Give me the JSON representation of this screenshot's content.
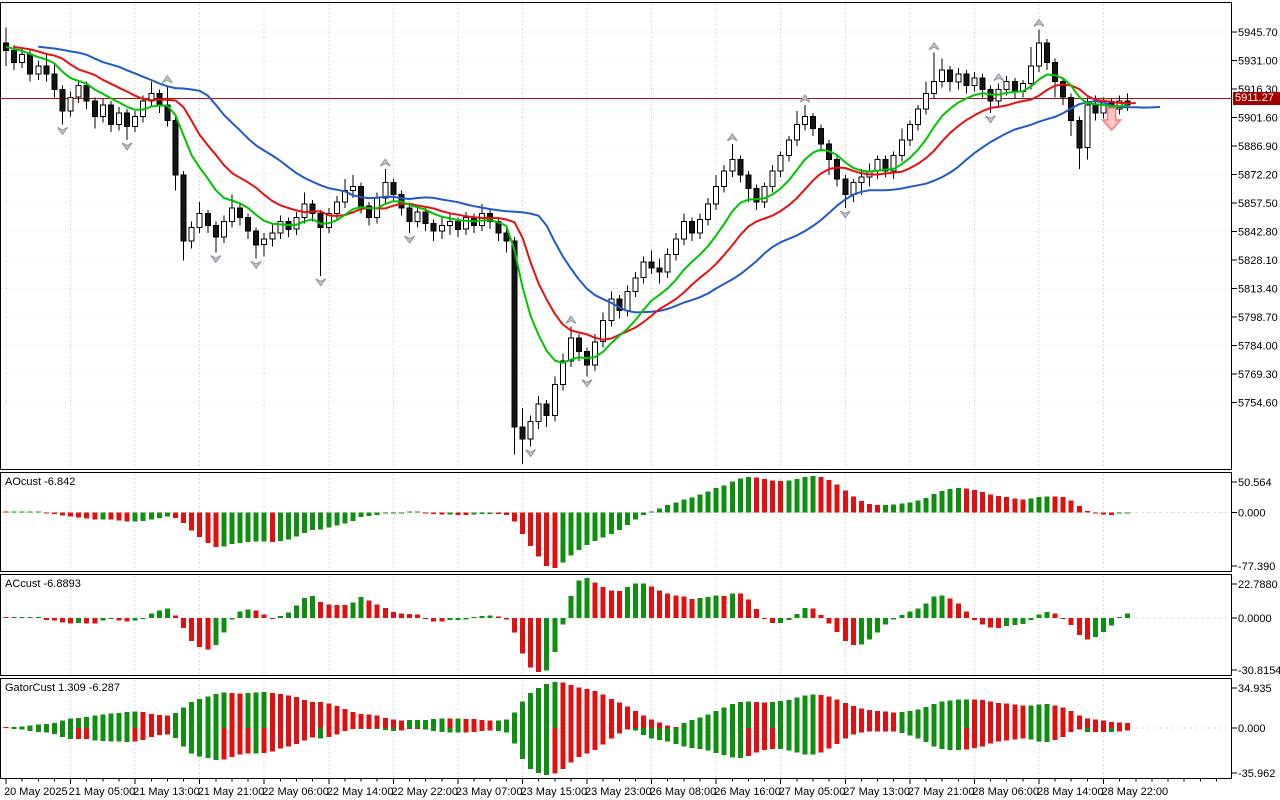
{
  "colors": {
    "background": "#ffffff",
    "border": "#000000",
    "grid": "#dcdcdc",
    "candle_outline": "#000000",
    "bull_fill": "#ffffff",
    "bear_fill": "#141414",
    "jaw_blue": "#1e5ac8",
    "teeth_red": "#e81010",
    "lips_green": "#00c400",
    "price_line": "#aa1111",
    "price_tag_bg": "#a40000",
    "price_tag_text": "#ffffff",
    "hist_up": "#0f8f0f",
    "hist_down": "#e01010",
    "fractal_fill": "#c4c4ce",
    "fractal_edge": "#93939f",
    "signal_fill": "#ffc4c4",
    "signal_edge": "#ff7878",
    "axis_text": "#000000"
  },
  "price_axis": {
    "ticks": [
      "5945.70",
      "5931.00",
      "5916.30",
      "5901.60",
      "5886.90",
      "5872.20",
      "5857.50",
      "5842.80",
      "5828.10",
      "5813.40",
      "5798.70",
      "5784.00",
      "5769.30",
      "5754.60"
    ],
    "current_price": "5911.27"
  },
  "time_axis": {
    "labels": [
      "20 May 2025",
      "21 May 05:00",
      "21 May 13:00",
      "21 May 21:00",
      "22 May 06:00",
      "22 May 14:00",
      "22 May 22:00",
      "23 May 07:00",
      "23 May 15:00",
      "23 May 23:00",
      "26 May 08:00",
      "26 May 16:00",
      "27 May 05:00",
      "27 May 13:00",
      "27 May 21:00",
      "28 May 06:00",
      "28 May 14:00",
      "28 May 22:00"
    ]
  },
  "panes": {
    "ao": {
      "label": "AOcust -6.842",
      "axis_max": "50.564",
      "axis_zero": "0.000",
      "axis_min": "-77.390"
    },
    "ac": {
      "label": "ACcust -6.8893",
      "axis_max": "22.7880",
      "axis_zero": "0.0000",
      "axis_min": "-30.8154"
    },
    "gator": {
      "label": "GatorCust 1.309 -6.287",
      "axis_max": "34.935",
      "axis_zero": "0.000",
      "axis_min": "-35.962"
    }
  },
  "chart_data": {
    "type": "candlestick",
    "title": "",
    "x_tick_labels": [
      "20 May 2025",
      "21 May 05:00",
      "21 May 13:00",
      "21 May 21:00",
      "22 May 06:00",
      "22 May 14:00",
      "22 May 22:00",
      "23 May 07:00",
      "23 May 15:00",
      "23 May 23:00",
      "26 May 08:00",
      "26 May 16:00",
      "27 May 05:00",
      "27 May 13:00",
      "27 May 21:00",
      "28 May 06:00",
      "28 May 14:00",
      "28 May 22:00"
    ],
    "price_range": [
      5722,
      5958
    ],
    "current_price": 5911.27,
    "candles": [
      [
        5940,
        5948,
        5928,
        5936
      ],
      [
        5936,
        5939,
        5926,
        5930
      ],
      [
        5930,
        5937,
        5927,
        5934
      ],
      [
        5934,
        5936,
        5920,
        5924
      ],
      [
        5924,
        5931,
        5921,
        5928
      ],
      [
        5928,
        5934,
        5920,
        5924
      ],
      [
        5924,
        5930,
        5912,
        5916
      ],
      [
        5916,
        5918,
        5898,
        5905
      ],
      [
        5905,
        5915,
        5902,
        5912
      ],
      [
        5912,
        5921,
        5909,
        5918
      ],
      [
        5918,
        5920,
        5906,
        5910
      ],
      [
        5910,
        5912,
        5896,
        5902
      ],
      [
        5902,
        5911,
        5899,
        5908
      ],
      [
        5908,
        5910,
        5894,
        5898
      ],
      [
        5898,
        5907,
        5895,
        5904
      ],
      [
        5904,
        5906,
        5890,
        5897
      ],
      [
        5897,
        5905,
        5894,
        5902
      ],
      [
        5902,
        5913,
        5899,
        5910
      ],
      [
        5910,
        5920,
        5907,
        5914
      ],
      [
        5914,
        5916,
        5904,
        5908
      ],
      [
        5908,
        5918,
        5897,
        5900
      ],
      [
        5900,
        5902,
        5864,
        5872
      ],
      [
        5872,
        5874,
        5828,
        5838
      ],
      [
        5838,
        5848,
        5834,
        5845
      ],
      [
        5845,
        5858,
        5842,
        5852
      ],
      [
        5852,
        5854,
        5842,
        5846
      ],
      [
        5846,
        5848,
        5832,
        5840
      ],
      [
        5840,
        5851,
        5837,
        5848
      ],
      [
        5848,
        5862,
        5845,
        5855
      ],
      [
        5855,
        5857,
        5846,
        5850
      ],
      [
        5850,
        5852,
        5839,
        5843
      ],
      [
        5843,
        5845,
        5829,
        5836
      ],
      [
        5836,
        5842,
        5830,
        5839
      ],
      [
        5839,
        5847,
        5835,
        5842
      ],
      [
        5842,
        5851,
        5839,
        5848
      ],
      [
        5848,
        5850,
        5840,
        5844
      ],
      [
        5844,
        5853,
        5841,
        5850
      ],
      [
        5850,
        5863,
        5847,
        5857
      ],
      [
        5857,
        5859,
        5848,
        5852
      ],
      [
        5852,
        5854,
        5820,
        5845
      ],
      [
        5845,
        5855,
        5842,
        5852
      ],
      [
        5852,
        5861,
        5849,
        5858
      ],
      [
        5858,
        5870,
        5855,
        5864
      ],
      [
        5864,
        5872,
        5860,
        5866
      ],
      [
        5866,
        5868,
        5852,
        5856
      ],
      [
        5856,
        5858,
        5846,
        5850
      ],
      [
        5850,
        5863,
        5847,
        5860
      ],
      [
        5860,
        5875,
        5857,
        5868
      ],
      [
        5868,
        5870,
        5858,
        5862
      ],
      [
        5862,
        5864,
        5851,
        5855
      ],
      [
        5855,
        5857,
        5842,
        5848
      ],
      [
        5848,
        5856,
        5845,
        5853
      ],
      [
        5853,
        5855,
        5843,
        5847
      ],
      [
        5847,
        5849,
        5838,
        5843
      ],
      [
        5843,
        5850,
        5839,
        5846
      ],
      [
        5846,
        5852,
        5841,
        5848
      ],
      [
        5848,
        5850,
        5840,
        5844
      ],
      [
        5844,
        5853,
        5841,
        5850
      ],
      [
        5850,
        5852,
        5842,
        5846
      ],
      [
        5846,
        5857,
        5843,
        5852
      ],
      [
        5852,
        5854,
        5844,
        5848
      ],
      [
        5848,
        5850,
        5838,
        5842
      ],
      [
        5842,
        5844,
        5832,
        5838
      ],
      [
        5838,
        5840,
        5728,
        5742
      ],
      [
        5742,
        5752,
        5723,
        5736
      ],
      [
        5736,
        5748,
        5732,
        5745
      ],
      [
        5745,
        5758,
        5741,
        5754
      ],
      [
        5754,
        5756,
        5742,
        5748
      ],
      [
        5748,
        5768,
        5745,
        5764
      ],
      [
        5764,
        5780,
        5761,
        5776
      ],
      [
        5776,
        5794,
        5773,
        5788
      ],
      [
        5788,
        5790,
        5776,
        5781
      ],
      [
        5781,
        5783,
        5768,
        5774
      ],
      [
        5774,
        5790,
        5771,
        5786
      ],
      [
        5786,
        5801,
        5783,
        5797
      ],
      [
        5797,
        5812,
        5794,
        5808
      ],
      [
        5808,
        5810,
        5798,
        5802
      ],
      [
        5802,
        5815,
        5799,
        5812
      ],
      [
        5812,
        5822,
        5809,
        5819
      ],
      [
        5819,
        5830,
        5816,
        5827
      ],
      [
        5827,
        5833,
        5821,
        5824
      ],
      [
        5824,
        5829,
        5816,
        5822
      ],
      [
        5822,
        5834,
        5819,
        5831
      ],
      [
        5831,
        5842,
        5828,
        5839
      ],
      [
        5839,
        5852,
        5836,
        5848
      ],
      [
        5848,
        5850,
        5838,
        5842
      ],
      [
        5842,
        5852,
        5839,
        5849
      ],
      [
        5849,
        5860,
        5846,
        5857
      ],
      [
        5857,
        5872,
        5854,
        5866
      ],
      [
        5866,
        5877,
        5863,
        5874
      ],
      [
        5874,
        5888,
        5871,
        5880
      ],
      [
        5880,
        5882,
        5868,
        5872
      ],
      [
        5872,
        5874,
        5858,
        5865
      ],
      [
        5865,
        5867,
        5854,
        5858
      ],
      [
        5858,
        5868,
        5855,
        5866
      ],
      [
        5866,
        5877,
        5863,
        5874
      ],
      [
        5874,
        5884,
        5871,
        5882
      ],
      [
        5882,
        5892,
        5879,
        5890
      ],
      [
        5890,
        5905,
        5887,
        5898
      ],
      [
        5898,
        5908,
        5895,
        5902
      ],
      [
        5902,
        5904,
        5892,
        5896
      ],
      [
        5896,
        5898,
        5884,
        5888
      ],
      [
        5888,
        5890,
        5872,
        5880
      ],
      [
        5880,
        5882,
        5866,
        5870
      ],
      [
        5870,
        5872,
        5855,
        5862
      ],
      [
        5862,
        5870,
        5858,
        5868
      ],
      [
        5868,
        5875,
        5862,
        5871
      ],
      [
        5871,
        5878,
        5866,
        5874
      ],
      [
        5874,
        5882,
        5870,
        5880
      ],
      [
        5880,
        5882,
        5871,
        5874
      ],
      [
        5874,
        5884,
        5870,
        5882
      ],
      [
        5882,
        5896,
        5879,
        5890
      ],
      [
        5890,
        5900,
        5887,
        5898
      ],
      [
        5898,
        5908,
        5895,
        5906
      ],
      [
        5906,
        5920,
        5903,
        5914
      ],
      [
        5914,
        5935,
        5911,
        5920
      ],
      [
        5920,
        5932,
        5917,
        5926
      ],
      [
        5926,
        5928,
        5915,
        5920
      ],
      [
        5920,
        5927,
        5916,
        5924
      ],
      [
        5924,
        5926,
        5914,
        5918
      ],
      [
        5918,
        5925,
        5915,
        5922
      ],
      [
        5922,
        5924,
        5912,
        5916
      ],
      [
        5916,
        5918,
        5904,
        5910
      ],
      [
        5910,
        5919,
        5907,
        5916
      ],
      [
        5916,
        5923,
        5913,
        5920
      ],
      [
        5920,
        5922,
        5911,
        5915
      ],
      [
        5915,
        5921,
        5912,
        5919
      ],
      [
        5919,
        5938,
        5916,
        5928
      ],
      [
        5928,
        5947,
        5925,
        5940
      ],
      [
        5940,
        5942,
        5926,
        5930
      ],
      [
        5930,
        5932,
        5912,
        5920
      ],
      [
        5920,
        5922,
        5908,
        5912
      ],
      [
        5912,
        5914,
        5892,
        5900
      ],
      [
        5900,
        5902,
        5875,
        5886
      ],
      [
        5886,
        5912,
        5880,
        5908
      ],
      [
        5908,
        5913,
        5900,
        5904
      ],
      [
        5904,
        5912,
        5901,
        5909
      ],
      [
        5909,
        5911,
        5899,
        5906
      ],
      [
        5906,
        5913,
        5903,
        5910
      ],
      [
        5910,
        5914,
        5905,
        5908
      ]
    ],
    "overlays": [
      {
        "name": "alligator-jaw",
        "type": "smma",
        "period": 13,
        "shift": 4,
        "color_key": "jaw_blue"
      },
      {
        "name": "alligator-teeth",
        "type": "smma",
        "period": 8,
        "shift": 1,
        "color_key": "teeth_red"
      },
      {
        "name": "alligator-lips",
        "type": "smma",
        "period": 5,
        "shift": 0,
        "color_key": "lips_green"
      }
    ],
    "fractals_up": [
      20,
      47,
      70,
      90,
      99,
      115,
      123,
      128
    ],
    "fractals_down": [
      7,
      15,
      26,
      31,
      39,
      50,
      65,
      72,
      104,
      122
    ],
    "signal": {
      "type": "sell-arrow",
      "index": 137
    },
    "indicators": [
      {
        "name": "AOcust",
        "kind": "awesome-oscillator",
        "last": -6.842,
        "range": [
          -77.39,
          50.564
        ]
      },
      {
        "name": "ACcust",
        "kind": "accelerator-oscillator",
        "last": -6.8893,
        "range": [
          -30.8154,
          22.788
        ]
      },
      {
        "name": "GatorCust",
        "kind": "gator-oscillator",
        "last_upper": 1.309,
        "last_lower": -6.287,
        "range": [
          -35.962,
          34.935
        ]
      }
    ]
  }
}
